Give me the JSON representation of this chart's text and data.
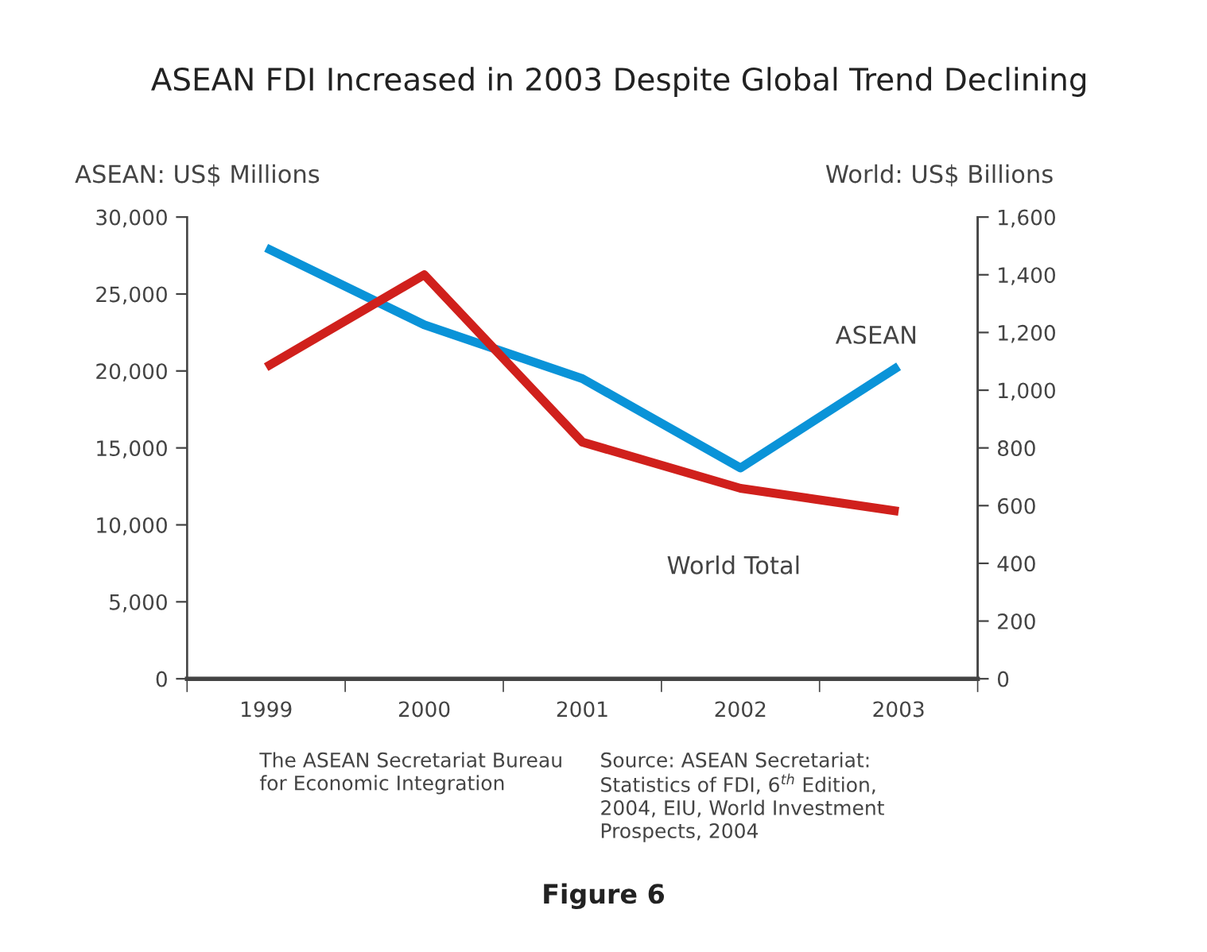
{
  "chart_data": {
    "type": "line",
    "title": "ASEAN FDI Increased in 2003 Despite Global Trend Declining",
    "ylabel": "ASEAN: US$ Millions",
    "y2label": "World: US$ Billions",
    "categories": [
      "1999",
      "2000",
      "2001",
      "2002",
      "2003"
    ],
    "series": [
      {
        "name": "ASEAN",
        "color": "#0a93d8",
        "values": [
          28000,
          23000,
          19500,
          13700,
          20300
        ]
      },
      {
        "name": "World Total",
        "color": "#d0201c",
        "axis": "y2",
        "values": [
          1080,
          1400,
          820,
          660,
          580
        ]
      }
    ],
    "ylim": [
      0,
      30000
    ],
    "yticks": [
      {
        "value": 0,
        "label": "0"
      },
      {
        "value": 5000,
        "label": "5,000"
      },
      {
        "value": 10000,
        "label": "10,000"
      },
      {
        "value": 15000,
        "label": "15,000"
      },
      {
        "value": 20000,
        "label": "20,000"
      },
      {
        "value": 25000,
        "label": "25,000"
      },
      {
        "value": 30000,
        "label": "30,000"
      }
    ],
    "y2lim": [
      0,
      1600
    ],
    "y2ticks": [
      {
        "value": 0,
        "label": "0"
      },
      {
        "value": 200,
        "label": "200"
      },
      {
        "value": 400,
        "label": "400"
      },
      {
        "value": 600,
        "label": "600"
      },
      {
        "value": 800,
        "label": "800"
      },
      {
        "value": 1000,
        "label": "1,000"
      },
      {
        "value": 1200,
        "label": "1,200"
      },
      {
        "value": 1400,
        "label": "1,400"
      },
      {
        "value": 1600,
        "label": "1,600"
      }
    ],
    "grid": false,
    "legend": false,
    "marker": "none",
    "line_style": "solid",
    "annotations": [
      "The ASEAN Secretariat Bureau\nfor Economic Integration",
      "Source: ASEAN Secretariat:\nStatistics of FDI, 6$^{th}$ Edition,\n2004, EIU, World Investment\nProspects, 2004",
      "Figure 6"
    ]
  }
}
